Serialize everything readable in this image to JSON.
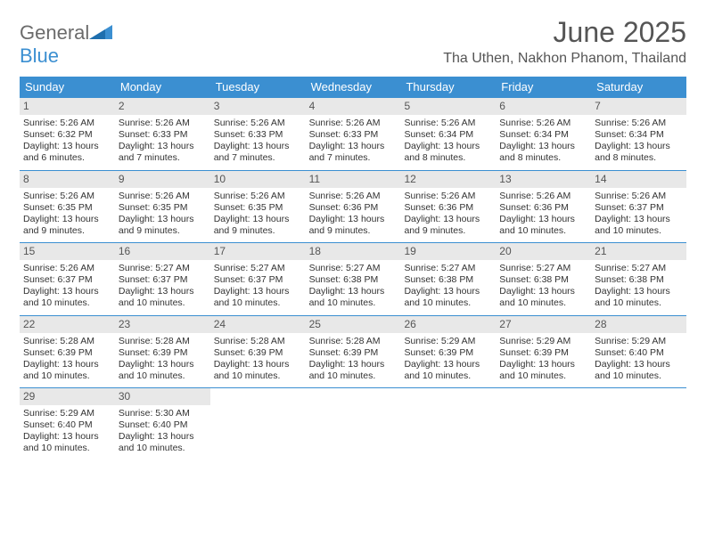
{
  "brand": {
    "part1": "General",
    "part2": "Blue"
  },
  "title": "June 2025",
  "location": "Tha Uthen, Nakhon Phanom, Thailand",
  "colors": {
    "header_bg": "#3b8fd1",
    "header_text": "#ffffff",
    "daynum_bg": "#e8e8e8",
    "border": "#3b8fd1",
    "text": "#333333",
    "logo_gray": "#6b6b6b",
    "logo_blue": "#3b8fd1"
  },
  "weekdays": [
    "Sunday",
    "Monday",
    "Tuesday",
    "Wednesday",
    "Thursday",
    "Friday",
    "Saturday"
  ],
  "weeks": [
    [
      {
        "n": "1",
        "sr": "5:26 AM",
        "ss": "6:32 PM",
        "dl": "13 hours and 6 minutes."
      },
      {
        "n": "2",
        "sr": "5:26 AM",
        "ss": "6:33 PM",
        "dl": "13 hours and 7 minutes."
      },
      {
        "n": "3",
        "sr": "5:26 AM",
        "ss": "6:33 PM",
        "dl": "13 hours and 7 minutes."
      },
      {
        "n": "4",
        "sr": "5:26 AM",
        "ss": "6:33 PM",
        "dl": "13 hours and 7 minutes."
      },
      {
        "n": "5",
        "sr": "5:26 AM",
        "ss": "6:34 PM",
        "dl": "13 hours and 8 minutes."
      },
      {
        "n": "6",
        "sr": "5:26 AM",
        "ss": "6:34 PM",
        "dl": "13 hours and 8 minutes."
      },
      {
        "n": "7",
        "sr": "5:26 AM",
        "ss": "6:34 PM",
        "dl": "13 hours and 8 minutes."
      }
    ],
    [
      {
        "n": "8",
        "sr": "5:26 AM",
        "ss": "6:35 PM",
        "dl": "13 hours and 9 minutes."
      },
      {
        "n": "9",
        "sr": "5:26 AM",
        "ss": "6:35 PM",
        "dl": "13 hours and 9 minutes."
      },
      {
        "n": "10",
        "sr": "5:26 AM",
        "ss": "6:35 PM",
        "dl": "13 hours and 9 minutes."
      },
      {
        "n": "11",
        "sr": "5:26 AM",
        "ss": "6:36 PM",
        "dl": "13 hours and 9 minutes."
      },
      {
        "n": "12",
        "sr": "5:26 AM",
        "ss": "6:36 PM",
        "dl": "13 hours and 9 minutes."
      },
      {
        "n": "13",
        "sr": "5:26 AM",
        "ss": "6:36 PM",
        "dl": "13 hours and 10 minutes."
      },
      {
        "n": "14",
        "sr": "5:26 AM",
        "ss": "6:37 PM",
        "dl": "13 hours and 10 minutes."
      }
    ],
    [
      {
        "n": "15",
        "sr": "5:26 AM",
        "ss": "6:37 PM",
        "dl": "13 hours and 10 minutes."
      },
      {
        "n": "16",
        "sr": "5:27 AM",
        "ss": "6:37 PM",
        "dl": "13 hours and 10 minutes."
      },
      {
        "n": "17",
        "sr": "5:27 AM",
        "ss": "6:37 PM",
        "dl": "13 hours and 10 minutes."
      },
      {
        "n": "18",
        "sr": "5:27 AM",
        "ss": "6:38 PM",
        "dl": "13 hours and 10 minutes."
      },
      {
        "n": "19",
        "sr": "5:27 AM",
        "ss": "6:38 PM",
        "dl": "13 hours and 10 minutes."
      },
      {
        "n": "20",
        "sr": "5:27 AM",
        "ss": "6:38 PM",
        "dl": "13 hours and 10 minutes."
      },
      {
        "n": "21",
        "sr": "5:27 AM",
        "ss": "6:38 PM",
        "dl": "13 hours and 10 minutes."
      }
    ],
    [
      {
        "n": "22",
        "sr": "5:28 AM",
        "ss": "6:39 PM",
        "dl": "13 hours and 10 minutes."
      },
      {
        "n": "23",
        "sr": "5:28 AM",
        "ss": "6:39 PM",
        "dl": "13 hours and 10 minutes."
      },
      {
        "n": "24",
        "sr": "5:28 AM",
        "ss": "6:39 PM",
        "dl": "13 hours and 10 minutes."
      },
      {
        "n": "25",
        "sr": "5:28 AM",
        "ss": "6:39 PM",
        "dl": "13 hours and 10 minutes."
      },
      {
        "n": "26",
        "sr": "5:29 AM",
        "ss": "6:39 PM",
        "dl": "13 hours and 10 minutes."
      },
      {
        "n": "27",
        "sr": "5:29 AM",
        "ss": "6:39 PM",
        "dl": "13 hours and 10 minutes."
      },
      {
        "n": "28",
        "sr": "5:29 AM",
        "ss": "6:40 PM",
        "dl": "13 hours and 10 minutes."
      }
    ],
    [
      {
        "n": "29",
        "sr": "5:29 AM",
        "ss": "6:40 PM",
        "dl": "13 hours and 10 minutes."
      },
      {
        "n": "30",
        "sr": "5:30 AM",
        "ss": "6:40 PM",
        "dl": "13 hours and 10 minutes."
      },
      null,
      null,
      null,
      null,
      null
    ]
  ],
  "labels": {
    "sunrise": "Sunrise:",
    "sunset": "Sunset:",
    "daylight": "Daylight:"
  }
}
